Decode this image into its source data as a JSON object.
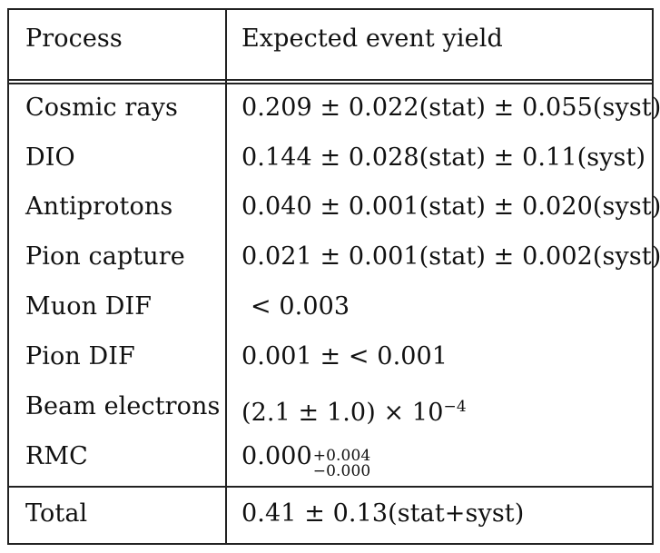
{
  "table": {
    "headers": [
      "Process",
      "Expected event yield"
    ],
    "rows": [
      {
        "process": "Cosmic rays",
        "yield": "0.209 ± 0.022(stat) ± 0.055(syst)"
      },
      {
        "process": "DIO",
        "yield": "0.144 ± 0.028(stat) ± 0.11(syst)"
      },
      {
        "process": "Antiprotons",
        "yield": "0.040 ± 0.001(stat) ± 0.020(syst)"
      },
      {
        "process": "Pion capture",
        "yield": "0.021 ± 0.001(stat) ± 0.002(syst)"
      },
      {
        "process": "Muon DIF",
        "yield": "< 0.003"
      },
      {
        "process": "Pion DIF",
        "yield": "0.001 ± < 0.001"
      },
      {
        "process": "Beam electrons",
        "yield_base": "(2.1 ± 1.0) × 10",
        "yield_exp": "−4"
      },
      {
        "process": "RMC",
        "yield_base": "0.000",
        "yield_upper": "+0.004",
        "yield_lower": "−0.000"
      }
    ],
    "total": {
      "process": "Total",
      "yield": "0.41 ± 0.13(stat+syst)"
    }
  }
}
